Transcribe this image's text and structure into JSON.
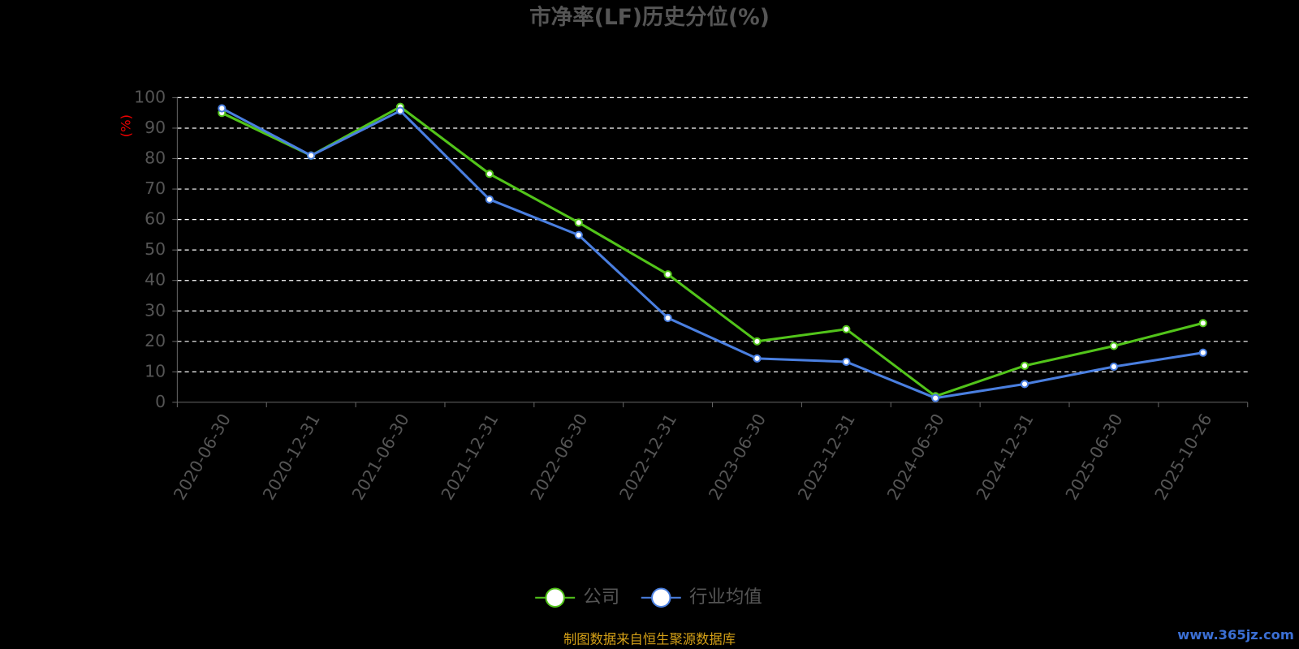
{
  "chart_data": {
    "type": "line",
    "title": "市净率(LF)历史分位(%)",
    "y_label": "(%)",
    "source": "制图数据来自恒生聚源数据库",
    "watermark": "www.365jz.com",
    "categories": [
      "2020-06-30",
      "2020-12-31",
      "2021-06-30",
      "2021-12-31",
      "2022-06-30",
      "2022-12-31",
      "2023-06-30",
      "2023-12-31",
      "2024-06-30",
      "2024-12-31",
      "2025-06-30",
      "2025-10-26"
    ],
    "series": [
      {
        "name": "公司",
        "color": "#52c41a",
        "values": [
          95,
          81,
          97,
          75,
          59,
          42,
          20,
          24,
          2,
          12,
          18.5,
          26
        ]
      },
      {
        "name": "行业均值",
        "color": "#4a7fe0",
        "values": [
          96.5,
          81,
          95.7,
          66.6,
          54.9,
          27.7,
          14.4,
          13.3,
          1.4,
          6,
          11.7,
          16.3
        ]
      }
    ],
    "ylim": [
      0,
      100
    ],
    "yticks": [
      0,
      10,
      20,
      30,
      40,
      50,
      60,
      70,
      80,
      90,
      100
    ],
    "grid": true
  }
}
